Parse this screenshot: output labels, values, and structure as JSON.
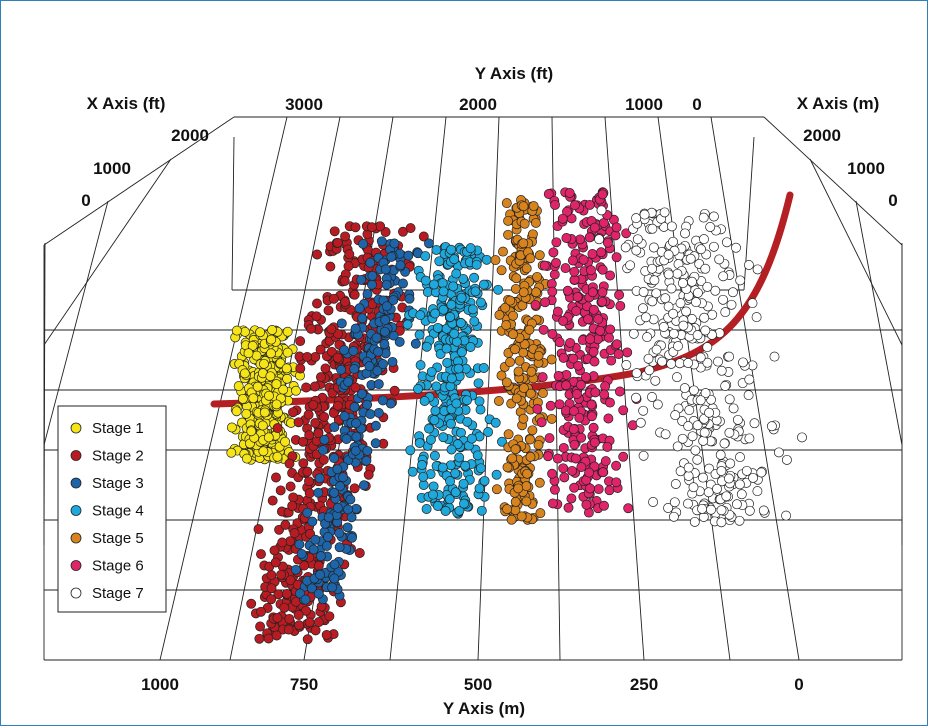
{
  "chart_data": {
    "type": "scatter",
    "title": "",
    "axes": {
      "x_ft": {
        "label": "X Axis (ft)",
        "ticks": [
          "2000",
          "1000",
          "0"
        ]
      },
      "x_m": {
        "label": "X Axis (m)",
        "ticks": [
          "2000",
          "1000",
          "0"
        ]
      },
      "y_ft": {
        "label": "Y Axis (ft)",
        "ticks": [
          "3000",
          "2000",
          "1000",
          "0"
        ]
      },
      "y_m": {
        "label": "Y Axis (m)",
        "ticks": [
          "1000",
          "750",
          "500",
          "250",
          "0"
        ]
      }
    },
    "legend": {
      "position": "left",
      "entries": [
        {
          "name": "Stage 1",
          "color": "#f5e416"
        },
        {
          "name": "Stage 2",
          "color": "#b81c22"
        },
        {
          "name": "Stage 3",
          "color": "#1d64a8"
        },
        {
          "name": "Stage 4",
          "color": "#1ea8dc"
        },
        {
          "name": "Stage 5",
          "color": "#d8841e"
        },
        {
          "name": "Stage 6",
          "color": "#e0246a"
        },
        {
          "name": "Stage 7",
          "color": "#ffffff"
        }
      ]
    },
    "wellbore_color": "#b41f24",
    "series": [
      {
        "name": "Stage 1",
        "y_m_range": [
          830,
          930
        ],
        "count": 420
      },
      {
        "name": "Stage 2",
        "y_m_range": [
          580,
          760
        ],
        "count": 520
      },
      {
        "name": "Stage 3",
        "y_m_range": [
          610,
          700
        ],
        "count": 260
      },
      {
        "name": "Stage 4",
        "y_m_range": [
          440,
          560
        ],
        "count": 340
      },
      {
        "name": "Stage 5",
        "y_m_range": [
          360,
          410
        ],
        "count": 280
      },
      {
        "name": "Stage 6",
        "y_m_range": [
          270,
          360
        ],
        "count": 330
      },
      {
        "name": "Stage 7",
        "y_m_range": [
          100,
          270
        ],
        "count": 380
      }
    ]
  }
}
